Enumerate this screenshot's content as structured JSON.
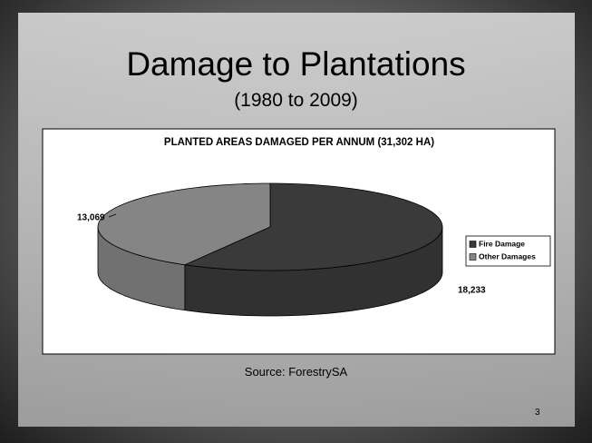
{
  "slide": {
    "title": "Damage to Plantations",
    "subtitle": "(1980 to 2009)",
    "source": "Source: ForestrySA",
    "page_number": 3
  },
  "chart_data": {
    "type": "pie",
    "title": "PLANTED AREAS DAMAGED PER ANNUM (31,302 HA)",
    "categories": [
      "Fire Damage",
      "Other Damages"
    ],
    "values": [
      18233,
      13069
    ],
    "value_labels": [
      "18,233",
      "13,069"
    ],
    "colors": [
      "#3a3a3a",
      "#858585"
    ],
    "legend": "right"
  }
}
